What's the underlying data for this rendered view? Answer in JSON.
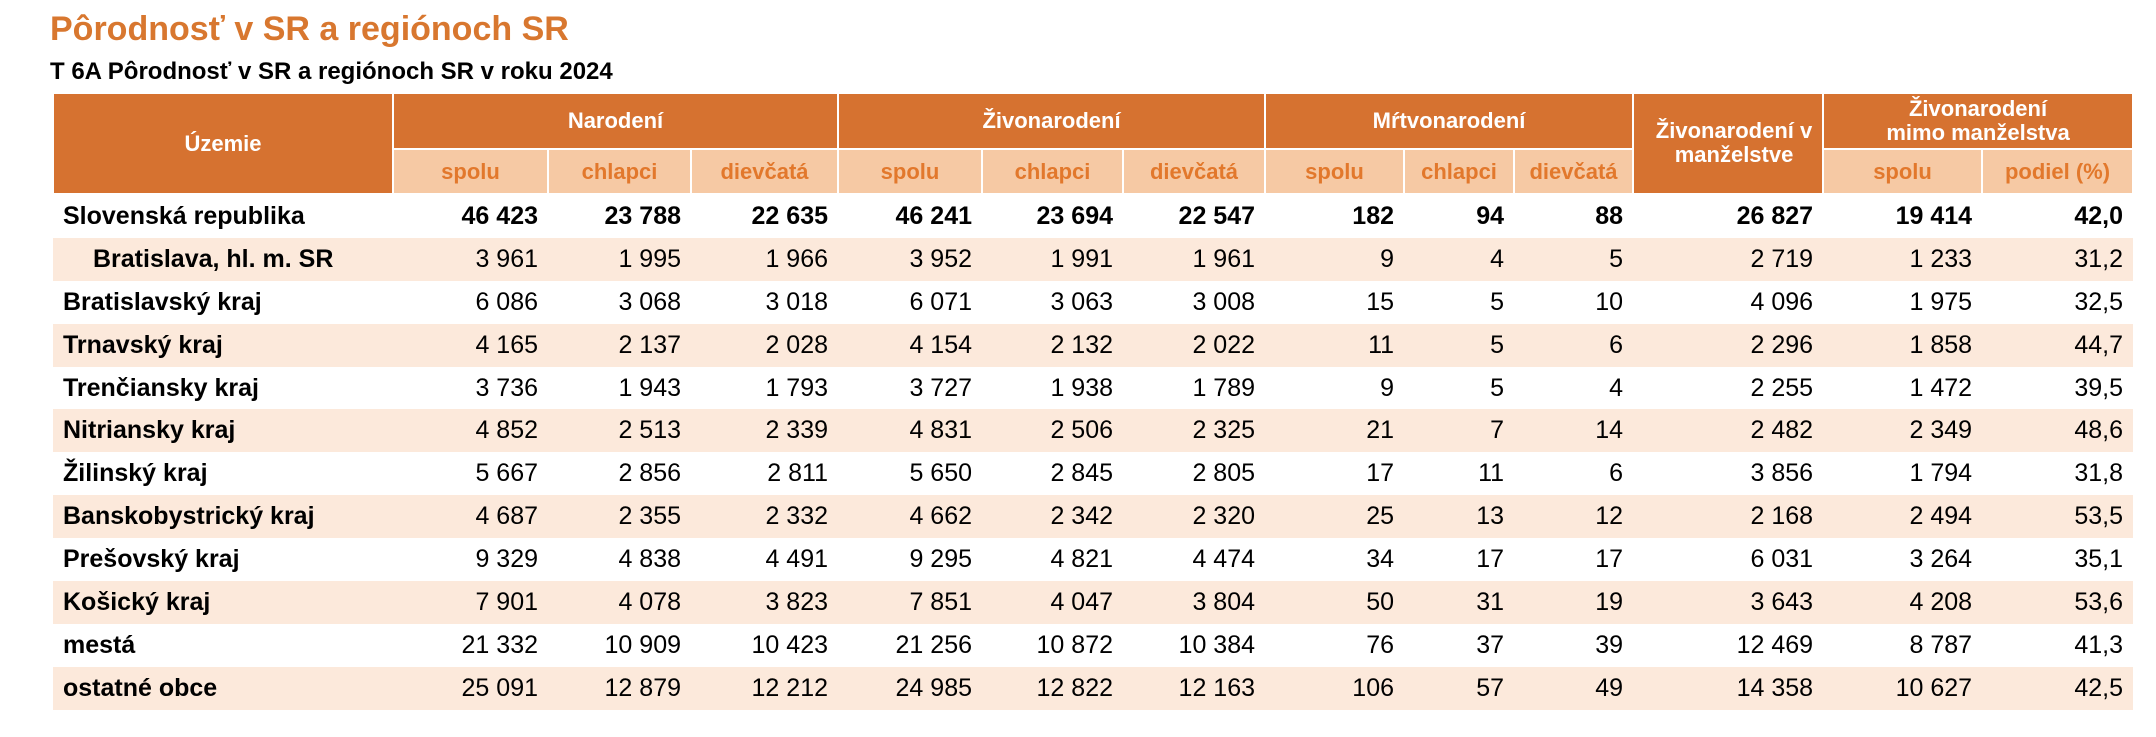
{
  "title": "Pôrodnosť v SR a regiónoch SR",
  "subtitle": "T 6A Pôrodnosť v SR a regiónoch SR v roku 2024",
  "table": {
    "corner": "Územie",
    "groups": [
      {
        "label": "Narodení",
        "columns": [
          "spolu",
          "chlapci",
          "dievčatá"
        ]
      },
      {
        "label": "Živonarodení",
        "columns": [
          "spolu",
          "chlapci",
          "dievčatá"
        ]
      },
      {
        "label": "Mŕtvonarodení",
        "columns": [
          "spolu",
          "chlapci",
          "dievčatá"
        ]
      },
      {
        "label": "Živonarodení v manželstve",
        "columns": []
      },
      {
        "label": "Živonarodení mimo manželstva",
        "columns": [
          "spolu",
          "podiel (%)"
        ]
      }
    ],
    "rows": [
      {
        "name": "Slovenská republika",
        "cells": [
          "46 423",
          "23 788",
          "22 635",
          "46 241",
          "23 694",
          "22 547",
          "182",
          "94",
          "88",
          "26 827",
          "19 414",
          "42,0"
        ]
      },
      {
        "name": "Bratislava, hl. m. SR",
        "cells": [
          "3 961",
          "1 995",
          "1 966",
          "3 952",
          "1 991",
          "1 961",
          "9",
          "4",
          "5",
          "2 719",
          "1 233",
          "31,2"
        ]
      },
      {
        "name": "Bratislavský kraj",
        "cells": [
          "6 086",
          "3 068",
          "3 018",
          "6 071",
          "3 063",
          "3 008",
          "15",
          "5",
          "10",
          "4 096",
          "1 975",
          "32,5"
        ]
      },
      {
        "name": "Trnavský kraj",
        "cells": [
          "4 165",
          "2 137",
          "2 028",
          "4 154",
          "2 132",
          "2 022",
          "11",
          "5",
          "6",
          "2 296",
          "1 858",
          "44,7"
        ]
      },
      {
        "name": "Trenčiansky kraj",
        "cells": [
          "3 736",
          "1 943",
          "1 793",
          "3 727",
          "1 938",
          "1 789",
          "9",
          "5",
          "4",
          "2 255",
          "1 472",
          "39,5"
        ]
      },
      {
        "name": "Nitriansky kraj",
        "cells": [
          "4 852",
          "2 513",
          "2 339",
          "4 831",
          "2 506",
          "2 325",
          "21",
          "7",
          "14",
          "2 482",
          "2 349",
          "48,6"
        ]
      },
      {
        "name": "Žilinský kraj",
        "cells": [
          "5 667",
          "2 856",
          "2 811",
          "5 650",
          "2 845",
          "2 805",
          "17",
          "11",
          "6",
          "3 856",
          "1 794",
          "31,8"
        ]
      },
      {
        "name": "Banskobystrický kraj",
        "cells": [
          "4 687",
          "2 355",
          "2 332",
          "4 662",
          "2 342",
          "2 320",
          "25",
          "13",
          "12",
          "2 168",
          "2 494",
          "53,5"
        ]
      },
      {
        "name": "Prešovský kraj",
        "cells": [
          "9 329",
          "4 838",
          "4 491",
          "9 295",
          "4 821",
          "4 474",
          "34",
          "17",
          "17",
          "6 031",
          "3 264",
          "35,1"
        ]
      },
      {
        "name": "Košický kraj",
        "cells": [
          "7 901",
          "4 078",
          "3 823",
          "7 851",
          "4 047",
          "3 804",
          "50",
          "31",
          "19",
          "3 643",
          "4 208",
          "53,6"
        ]
      },
      {
        "name": "mestá",
        "cells": [
          "21 332",
          "10 909",
          "10 423",
          "21 256",
          "10 872",
          "10 384",
          "76",
          "37",
          "39",
          "12 469",
          "8 787",
          "41,3"
        ]
      },
      {
        "name": "ostatné obce",
        "cells": [
          "25 091",
          "12 879",
          "12 212",
          "24 985",
          "12 822",
          "12 163",
          "106",
          "57",
          "49",
          "14 358",
          "10 627",
          "42,5"
        ]
      }
    ]
  }
}
